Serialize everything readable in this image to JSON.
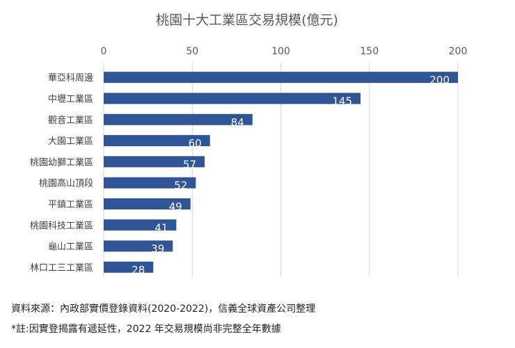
{
  "chart_data": {
    "type": "bar",
    "orientation": "horizontal",
    "title": "桃園十大工業區交易規模(億元)",
    "categories": [
      "華亞科周邊",
      "中壢工業區",
      "觀音工業區",
      "大園工業區",
      "桃園幼獅工業區",
      "桃園高山頂段",
      "平鎮工業區",
      "桃園科技工業區",
      "龜山工業區",
      "林口工三工業區"
    ],
    "values": [
      200,
      145,
      84,
      60,
      57,
      52,
      49,
      41,
      39,
      28
    ],
    "xlim": [
      0,
      200
    ],
    "xticks": [
      0,
      50,
      100,
      150,
      200
    ],
    "xaxis_position": "top",
    "grid": true,
    "bar_color": "#2F5597",
    "label_color": "#FFFFFF"
  },
  "footer": {
    "source": "資料來源：內政部實價登錄資料(2020-2022)，信義全球資產公司整理",
    "note": "*註:因實登揭露有遞延性，2022 年交易規模尚非完整全年數據"
  }
}
